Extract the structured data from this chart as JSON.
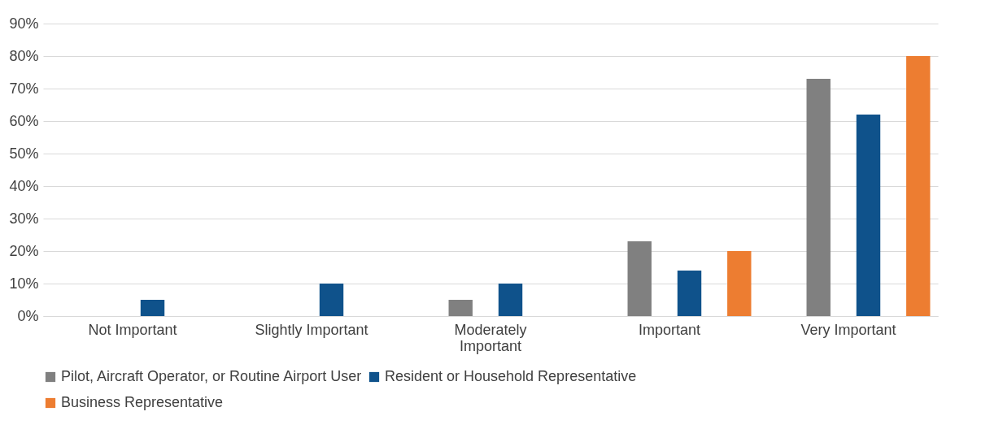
{
  "chart_data": {
    "type": "bar",
    "categories": [
      "Not Important",
      "Slightly Important",
      "Moderately Important",
      "Important",
      "Very Important"
    ],
    "series": [
      {
        "name": "Pilot, Aircraft Operator, or Routine Airport User",
        "color": "#808080",
        "values": [
          0,
          0,
          5,
          23,
          73
        ]
      },
      {
        "name": "Resident or Household Representative",
        "color": "#0f528b",
        "values": [
          5,
          10,
          10,
          14,
          62
        ]
      },
      {
        "name": "Business Representative",
        "color": "#ed7d31",
        "values": [
          0,
          0,
          0,
          20,
          80
        ]
      }
    ],
    "ylim": [
      0,
      90
    ],
    "yticks": [
      {
        "value": 0,
        "label": "0%"
      },
      {
        "value": 10,
        "label": "10%"
      },
      {
        "value": 20,
        "label": "20%"
      },
      {
        "value": 30,
        "label": "30%"
      },
      {
        "value": 40,
        "label": "40%"
      },
      {
        "value": 50,
        "label": "50%"
      },
      {
        "value": 60,
        "label": "60%"
      },
      {
        "value": 70,
        "label": "70%"
      },
      {
        "value": 80,
        "label": "80%"
      },
      {
        "value": 90,
        "label": "90%"
      }
    ],
    "grid": "y",
    "legend": "bottom"
  }
}
